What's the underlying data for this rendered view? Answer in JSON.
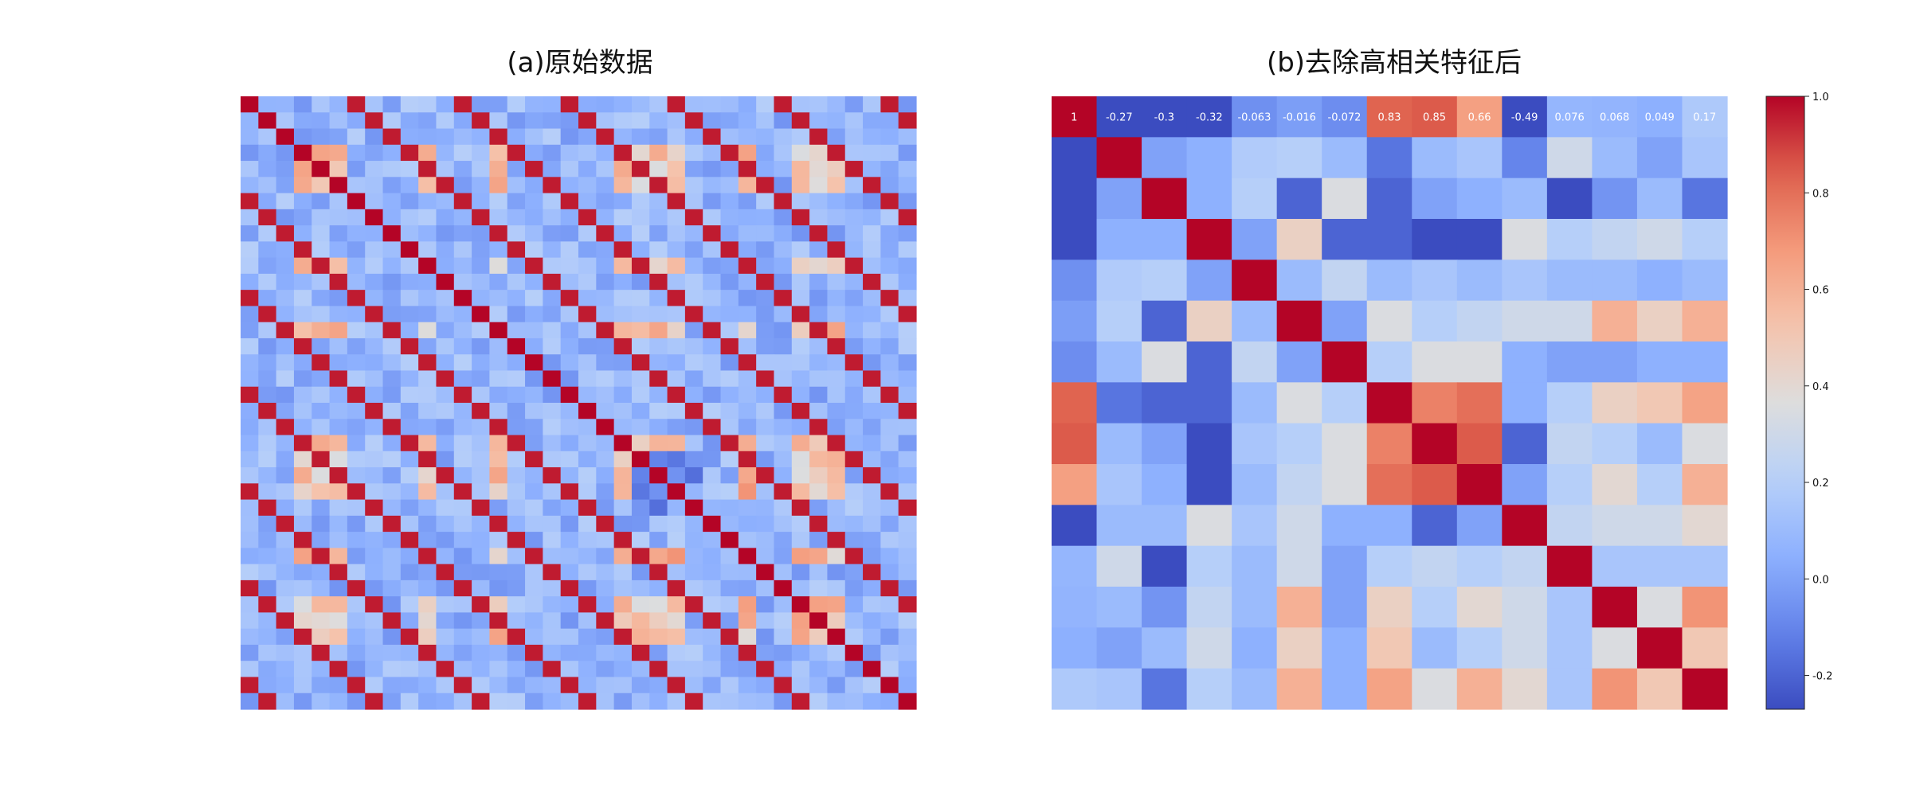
{
  "chart_data": [
    {
      "type": "heatmap",
      "title": "(a)原始数据",
      "colormap": "coolwarm",
      "vmin": -0.27,
      "vmax": 1.0,
      "rows": 38,
      "cols": 38,
      "annotated_row": 0,
      "annotations_legible": false
    },
    {
      "type": "heatmap",
      "title": "(b)去除高相关特征后",
      "colormap": "coolwarm",
      "vmin": -0.27,
      "vmax": 1.0,
      "rows": 15,
      "cols": 15,
      "row0_labels": [
        "1",
        "-0.27",
        "-0.3",
        "-0.32",
        "-0.063",
        "-0.016",
        "-0.072",
        "0.83",
        "0.85",
        "0.66",
        "-0.49",
        "0.076",
        "0.068",
        "0.049",
        "0.17"
      ],
      "matrix": [
        [
          1,
          -0.27,
          -0.3,
          -0.32,
          -0.063,
          -0.016,
          -0.072,
          0.83,
          0.85,
          0.66,
          -0.49,
          0.076,
          0.068,
          0.049,
          0.17
        ],
        [
          -0.27,
          1,
          0.0,
          0.05,
          0.18,
          0.2,
          0.1,
          -0.15,
          0.1,
          0.15,
          -0.1,
          0.3,
          0.1,
          0.0,
          0.15
        ],
        [
          -0.3,
          0.0,
          1,
          0.05,
          0.2,
          -0.2,
          0.35,
          -0.2,
          0.0,
          0.05,
          0.1,
          -0.3,
          -0.05,
          0.1,
          -0.15
        ],
        [
          -0.32,
          0.05,
          0.05,
          1,
          0.0,
          0.45,
          -0.2,
          -0.2,
          -0.3,
          -0.3,
          0.35,
          0.2,
          0.25,
          0.3,
          0.2
        ],
        [
          -0.063,
          0.18,
          0.2,
          0.0,
          1,
          0.1,
          0.25,
          0.1,
          0.15,
          0.1,
          0.15,
          0.1,
          0.1,
          0.05,
          0.1
        ],
        [
          -0.016,
          0.2,
          -0.2,
          0.45,
          0.1,
          1,
          0.0,
          0.35,
          0.2,
          0.25,
          0.3,
          0.3,
          0.6,
          0.45,
          0.6
        ],
        [
          -0.072,
          0.1,
          0.35,
          -0.2,
          0.25,
          0.0,
          1,
          0.2,
          0.35,
          0.35,
          0.05,
          0.0,
          0.0,
          0.05,
          0.05
        ],
        [
          0.83,
          -0.15,
          -0.2,
          -0.2,
          0.1,
          0.35,
          0.2,
          1,
          0.75,
          0.8,
          0.05,
          0.2,
          0.45,
          0.5,
          0.65
        ],
        [
          0.85,
          0.1,
          0.0,
          -0.3,
          0.15,
          0.2,
          0.35,
          0.75,
          1,
          0.85,
          -0.2,
          0.25,
          0.2,
          0.1,
          0.35
        ],
        [
          0.66,
          0.15,
          0.05,
          -0.3,
          0.1,
          0.25,
          0.35,
          0.8,
          0.85,
          1,
          0.0,
          0.2,
          0.4,
          0.2,
          0.6
        ],
        [
          -0.49,
          0.1,
          0.1,
          0.35,
          0.15,
          0.3,
          0.05,
          0.05,
          -0.2,
          0.0,
          1,
          0.25,
          0.3,
          0.3,
          0.4
        ],
        [
          0.076,
          0.3,
          -0.3,
          0.2,
          0.1,
          0.3,
          0.0,
          0.2,
          0.25,
          0.2,
          0.25,
          1,
          0.15,
          0.15,
          0.15
        ],
        [
          0.068,
          0.1,
          -0.05,
          0.25,
          0.1,
          0.6,
          0.0,
          0.45,
          0.2,
          0.4,
          0.3,
          0.15,
          1,
          0.35,
          0.7
        ],
        [
          0.049,
          0.0,
          0.1,
          0.3,
          0.05,
          0.45,
          0.05,
          0.5,
          0.1,
          0.2,
          0.3,
          0.15,
          0.35,
          1,
          0.5
        ],
        [
          0.17,
          0.15,
          -0.15,
          0.2,
          0.1,
          0.6,
          0.05,
          0.65,
          0.35,
          0.6,
          0.4,
          0.15,
          0.7,
          0.5,
          1
        ]
      ]
    }
  ],
  "colorbar": {
    "ticks": [
      1.0,
      0.8,
      0.6,
      0.4,
      0.2,
      0.0,
      -0.2
    ],
    "tick_labels": [
      "1.0",
      "0.8",
      "0.6",
      "0.4",
      "0.2",
      "0.0",
      "-0.2"
    ]
  }
}
